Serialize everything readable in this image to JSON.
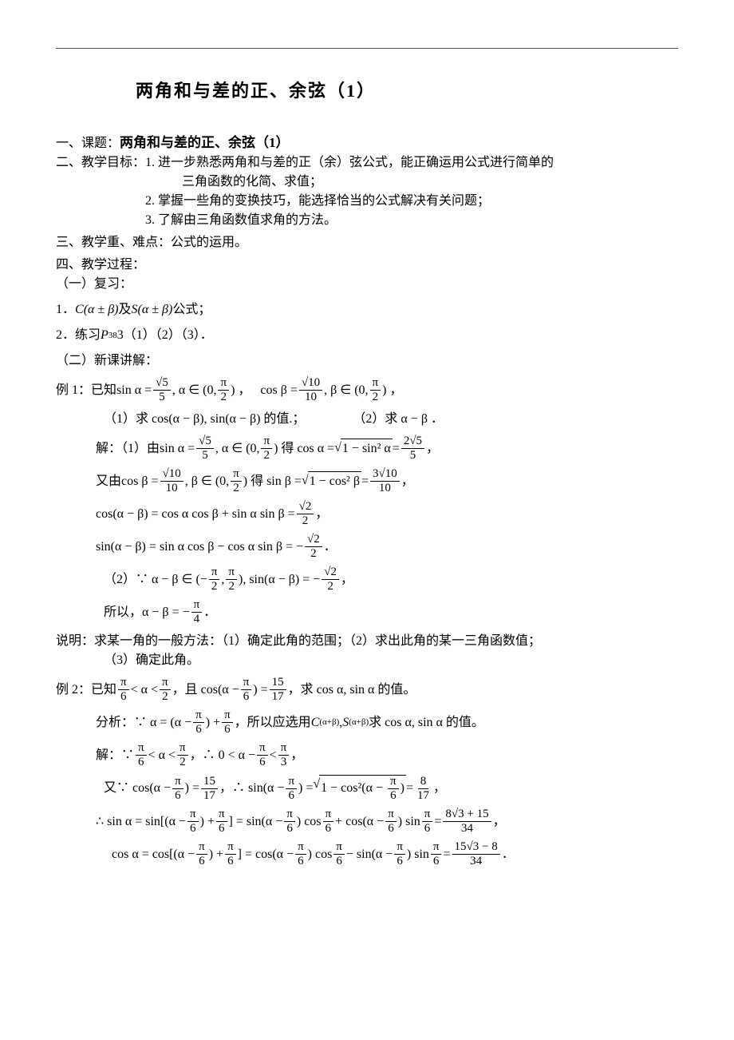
{
  "title": "两角和与差的正、余弦（1）",
  "sections": {
    "s1_label": "一、课题：",
    "s1_topic": "两角和与差的正、余弦（1）",
    "s2_label": "二、教学目标：",
    "s2_obj1": "1. 进一步熟悉两角和与差的正（余）弦公式，能正确运用公式进行简单的",
    "s2_obj1b": "三角函数的化简、求值；",
    "s2_obj2": "2. 掌握一些角的变换技巧，能选择恰当的公式解决有关问题；",
    "s2_obj3": "3. 了解由三角函数值求角的方法。",
    "s3_label": "三、教学重、难点：公式的运用。",
    "s4_label": "四、教学过程：",
    "s4_review": "（一）复习：",
    "s4_r1_pre": "1．",
    "s4_r1_c": "C(α ± β)",
    "s4_r1_and": " 及 ",
    "s4_r1_s": "S(α ± β)",
    "s4_r1_post": " 公式；",
    "s4_r2_pre": "2．练习 ",
    "s4_r2_p": "P",
    "s4_r2_sub": "38",
    "s4_r2_post": " 3（1）（2）（3）．",
    "s4_new": "（二）新课讲解：",
    "ex1_label": "例 1：已知 ",
    "ex1_m1a": "sin α = ",
    "ex1_m1_num": "√5",
    "ex1_m1_den": "5",
    "ex1_m1b": ", α ∈ (0, ",
    "ex1_m1_pi2n": "π",
    "ex1_m1_pi2d": "2",
    "ex1_m1c": ") ，",
    "ex1_m1d": "cos β = ",
    "ex1_m1e_num": "√10",
    "ex1_m1e_den": "10",
    "ex1_m1f": ", β ∈ (0, ",
    "ex1_m1g": ") ，",
    "ex1_q1": "（1）求 cos(α − β), sin(α − β) 的值.；",
    "ex1_q2": "（2）求 α − β ．",
    "ex1_sol_label": "解：（1）由 ",
    "ex1_s1a": "sin α = ",
    "ex1_s1b": ", α ∈ (0, ",
    "ex1_s1c": ") 得 cos α = ",
    "ex1_s1_sqrt": "1 − sin² α",
    "ex1_s1d": " = ",
    "ex1_s1e_num": "2√5",
    "ex1_s1e_den": "5",
    "ex1_s1f": " ，",
    "ex1_s2_pre": "又由 ",
    "ex1_s2a": "cos β = ",
    "ex1_s2b": ", β ∈ (0, ",
    "ex1_s2c": ") 得 sin β = ",
    "ex1_s2_sqrt": "1 − cos² β",
    "ex1_s2d": " = ",
    "ex1_s2e_num": "3√10",
    "ex1_s2e_den": "10",
    "ex1_s2f": " ，",
    "ex1_s3": "cos(α − β) = cos α cos β + sin α sin β = ",
    "ex1_s3_num": "√2",
    "ex1_s3_den": "2",
    "ex1_s3_post": " ，",
    "ex1_s4": "sin(α − β) = sin α cos β − cos α sin β = − ",
    "ex1_s4_post": " ．",
    "ex1_p2_label": "（2）∵ α − β ∈ (− ",
    "ex1_p2b": ", ",
    "ex1_p2c": "),  sin(α − β) = − ",
    "ex1_p2d": " ，",
    "ex1_p2_so": "所以，",
    "ex1_p2e": "α − β = − ",
    "ex1_p2_pi4n": "π",
    "ex1_p2_pi4d": "4",
    "ex1_p2f": " ．",
    "note1": "说明：求某一角的一般方法：（1）确定此角的范围；（2）求出此角的某一三角函数值；",
    "note1b": "（3）确定此角。",
    "ex2_label": "例 2：已知 ",
    "ex2_pi6n": "π",
    "ex2_pi6d": "6",
    "ex2_a": " < α < ",
    "ex2_b": " ，且 cos(α − ",
    "ex2_c": ") = ",
    "ex2_1517n": "15",
    "ex2_1517d": "17",
    "ex2_d": " ，求 cos α, sin α 的值。",
    "ex2_ana_label": "分析：∵ α = (α − ",
    "ex2_ana_b": ") + ",
    "ex2_ana_c": " ，所以应选用 ",
    "ex2_ana_C": "C",
    "ex2_ana_Csub": "(α+β)",
    "ex2_ana_comma": ", ",
    "ex2_ana_S": "S",
    "ex2_ana_Ssub": "(α+β)",
    "ex2_ana_d": " 求 cos α, sin α 的值。",
    "ex2_sol_label": "解：∵ ",
    "ex2_sol_a": " < α < ",
    "ex2_sol_b": " ，∴ 0 < α − ",
    "ex2_sol_c": " < ",
    "ex2_pi3n": "π",
    "ex2_pi3d": "3",
    "ex2_sol_d": " ，",
    "ex2_l2a": "又∵ cos(α − ",
    "ex2_l2b": ") = ",
    "ex2_l2c": " ，∴ sin(α − ",
    "ex2_l2d": ") = ",
    "ex2_l2_sqrt": "1 − cos²(α − ",
    "ex2_l2_sqrt2": ")",
    "ex2_l2e": " = ",
    "ex2_817n": "8",
    "ex2_817d": "17",
    "ex2_l2f": " ，",
    "ex2_l3a": "∴ sin α = sin[(α − ",
    "ex2_l3b": ") + ",
    "ex2_l3c": "] = sin(α − ",
    "ex2_l3d": ") cos ",
    "ex2_l3e": " + cos(α − ",
    "ex2_l3f": ") sin ",
    "ex2_l3g": " = ",
    "ex2_l3_num": "8√3 + 15",
    "ex2_l3_den": "34",
    "ex2_l3h": " ，",
    "ex2_l4a": "cos α = cos[(α − ",
    "ex2_l4b": ") + ",
    "ex2_l4c": "] = cos(α − ",
    "ex2_l4d": ") cos ",
    "ex2_l4e": " − sin(α − ",
    "ex2_l4f": ") sin ",
    "ex2_l4g": " = ",
    "ex2_l4_num": "15√3 − 8",
    "ex2_l4_den": "34",
    "ex2_l4h": " ．"
  },
  "colors": {
    "text": "#000000",
    "bg": "#ffffff"
  },
  "fonts": {
    "body": "SimSun",
    "topic": "KaiTi"
  }
}
